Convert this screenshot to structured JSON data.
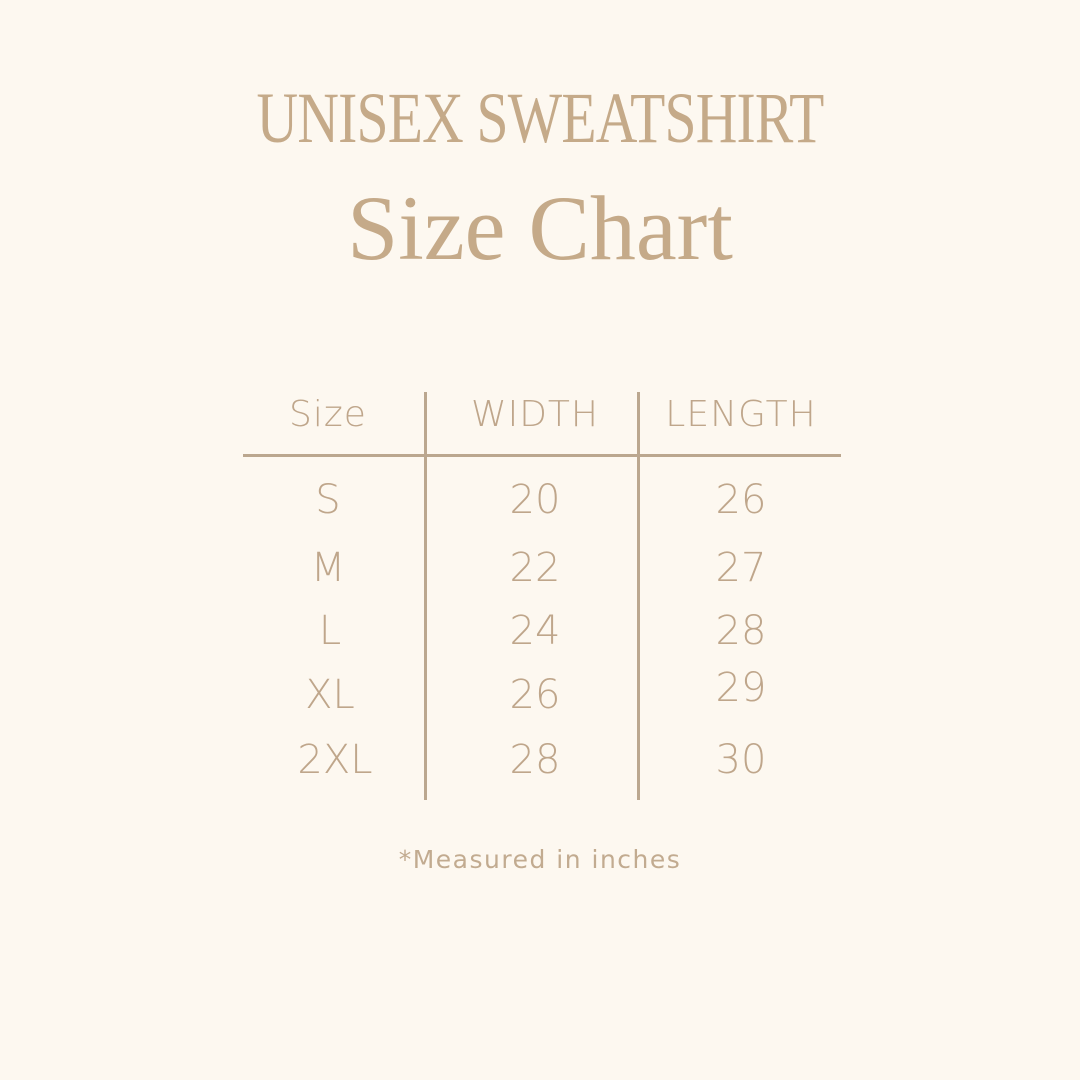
{
  "title": {
    "line1": "UNISEX SWEATSHIRT",
    "line2": "Size Chart"
  },
  "table": {
    "headers": [
      "Size",
      "WIDTH",
      "LENGTH"
    ],
    "rows": [
      {
        "size": "S",
        "width": "20",
        "length": "26"
      },
      {
        "size": "M",
        "width": "22",
        "length": "27"
      },
      {
        "size": "L",
        "width": "24",
        "length": "28"
      },
      {
        "size": "XL",
        "width": "26",
        "length": "29"
      },
      {
        "size": "2XL",
        "width": "28",
        "length": "30"
      }
    ]
  },
  "footnote": "*Measured in inches",
  "colors": {
    "background": "#fdf8f0",
    "text": "#c5aa89",
    "lines": "#bba78f"
  }
}
